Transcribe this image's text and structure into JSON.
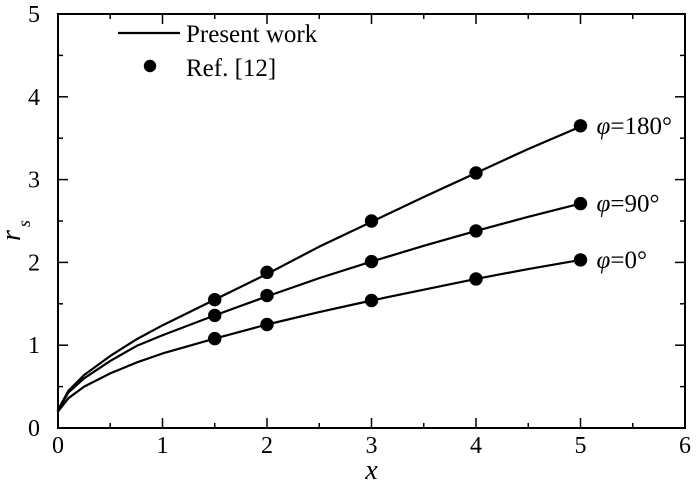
{
  "chart_data": {
    "type": "line",
    "xlabel": "x",
    "ylabel_main": "r",
    "ylabel_sub": "s",
    "xlim": [
      0,
      6
    ],
    "ylim": [
      0,
      5
    ],
    "xticks": [
      "0",
      "1",
      "2",
      "3",
      "4",
      "5",
      "6"
    ],
    "yticks": [
      "0",
      "1",
      "2",
      "3",
      "4",
      "5"
    ],
    "legend_position": "top-left",
    "legend": [
      {
        "label": "Present work",
        "marker": "line"
      },
      {
        "label": "Ref. [12]",
        "marker": "filled-circle"
      }
    ],
    "series": [
      {
        "label_phi": "φ",
        "label_value": "=180°",
        "line_x": [
          0,
          0.1,
          0.25,
          0.5,
          0.75,
          1.0,
          1.5,
          2.0,
          2.5,
          3.0,
          3.5,
          4.0,
          4.5,
          5.0
        ],
        "line_y": [
          0.22,
          0.45,
          0.64,
          0.87,
          1.07,
          1.24,
          1.55,
          1.86,
          2.19,
          2.49,
          2.79,
          3.08,
          3.37,
          3.64
        ],
        "ref_x": [
          1.5,
          2.0,
          3.0,
          4.0,
          5.0
        ],
        "ref_y": [
          1.55,
          1.88,
          2.5,
          3.08,
          3.65
        ]
      },
      {
        "label_phi": "φ",
        "label_value": "=90°",
        "line_x": [
          0,
          0.1,
          0.25,
          0.5,
          0.75,
          1.0,
          1.5,
          2.0,
          2.5,
          3.0,
          3.5,
          4.0,
          4.5,
          5.0
        ],
        "line_y": [
          0.21,
          0.43,
          0.6,
          0.81,
          0.99,
          1.12,
          1.36,
          1.59,
          1.81,
          2.01,
          2.2,
          2.38,
          2.55,
          2.71
        ],
        "ref_x": [
          1.5,
          2.0,
          3.0,
          4.0,
          5.0
        ],
        "ref_y": [
          1.36,
          1.6,
          2.01,
          2.38,
          2.71
        ]
      },
      {
        "label_phi": "φ",
        "label_value": "=0°",
        "line_x": [
          0,
          0.1,
          0.25,
          0.5,
          0.75,
          1.0,
          1.5,
          2.0,
          2.5,
          3.0,
          3.5,
          4.0,
          4.5,
          5.0
        ],
        "line_y": [
          0.2,
          0.36,
          0.5,
          0.66,
          0.79,
          0.9,
          1.08,
          1.25,
          1.4,
          1.54,
          1.67,
          1.8,
          1.92,
          2.03
        ],
        "ref_x": [
          1.5,
          2.0,
          3.0,
          4.0,
          5.0
        ],
        "ref_y": [
          1.08,
          1.25,
          1.54,
          1.8,
          2.03
        ]
      }
    ]
  }
}
